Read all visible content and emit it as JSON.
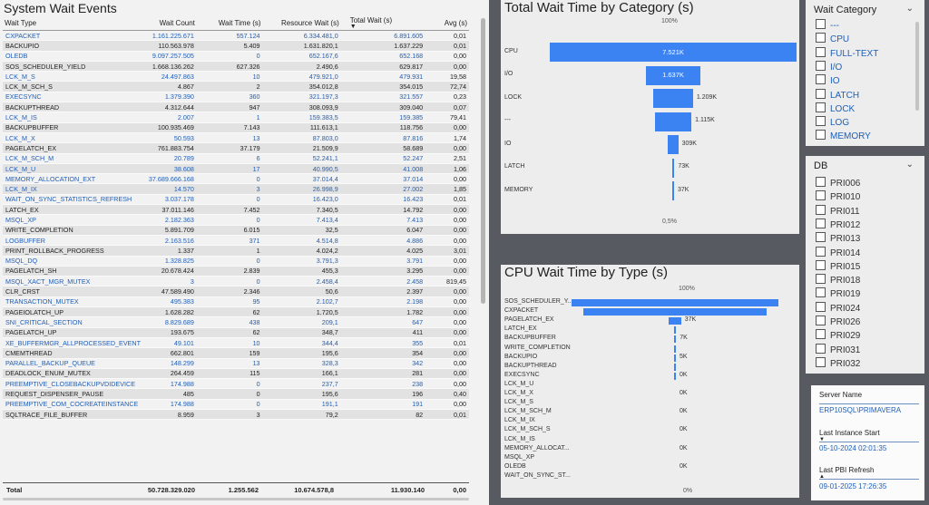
{
  "events": {
    "title": "System Wait Events",
    "columns": [
      "Wait Type",
      "Wait Count",
      "Wait Time (s)",
      "Resource Wait (s)",
      "Total Wait (s)",
      "Avg (s)"
    ],
    "rows": [
      [
        "CXPACKET",
        "1.161.225.671",
        "557.124",
        "6.334.481,0",
        "6.891.605",
        "0,01",
        true
      ],
      [
        "BACKUPIO",
        "110.563.978",
        "5.409",
        "1.631.820,1",
        "1.637.229",
        "0,01",
        false
      ],
      [
        "OLEDB",
        "9.097.257.505",
        "0",
        "652.167,6",
        "652.168",
        "0,00",
        true
      ],
      [
        "SOS_SCHEDULER_YIELD",
        "1.668.136.262",
        "627.326",
        "2.490,6",
        "629.817",
        "0,00",
        false
      ],
      [
        "LCK_M_S",
        "24.497.863",
        "10",
        "479.921,0",
        "479.931",
        "19,58",
        true
      ],
      [
        "LCK_M_SCH_S",
        "4.867",
        "2",
        "354.012,8",
        "354.015",
        "72,74",
        false
      ],
      [
        "EXECSYNC",
        "1.379.390",
        "360",
        "321.197,3",
        "321.557",
        "0,23",
        true
      ],
      [
        "BACKUPTHREAD",
        "4.312.644",
        "947",
        "308.093,9",
        "309.040",
        "0,07",
        false
      ],
      [
        "LCK_M_IS",
        "2.007",
        "1",
        "159.383,5",
        "159.385",
        "79,41",
        true
      ],
      [
        "BACKUPBUFFER",
        "100.935.469",
        "7.143",
        "111.613,1",
        "118.756",
        "0,00",
        false
      ],
      [
        "LCK_M_X",
        "50.593",
        "13",
        "87.803,0",
        "87.816",
        "1,74",
        true
      ],
      [
        "PAGELATCH_EX",
        "761.883.754",
        "37.179",
        "21.509,9",
        "58.689",
        "0,00",
        false
      ],
      [
        "LCK_M_SCH_M",
        "20.789",
        "6",
        "52.241,1",
        "52.247",
        "2,51",
        true
      ],
      [
        "LCK_M_U",
        "38.608",
        "17",
        "40.990,5",
        "41.008",
        "1,06",
        true
      ],
      [
        "MEMORY_ALLOCATION_EXT",
        "37.689.666.168",
        "0",
        "37.014,4",
        "37.014",
        "0,00",
        true
      ],
      [
        "LCK_M_IX",
        "14.570",
        "3",
        "26.998,9",
        "27.002",
        "1,85",
        true
      ],
      [
        "WAIT_ON_SYNC_STATISTICS_REFRESH",
        "3.037.178",
        "0",
        "16.423,0",
        "16.423",
        "0,01",
        true
      ],
      [
        "LATCH_EX",
        "37.011.146",
        "7.452",
        "7.340,5",
        "14.792",
        "0,00",
        false
      ],
      [
        "MSQL_XP",
        "2.182.363",
        "0",
        "7.413,4",
        "7.413",
        "0,00",
        true
      ],
      [
        "WRITE_COMPLETION",
        "5.891.709",
        "6.015",
        "32,5",
        "6.047",
        "0,00",
        false
      ],
      [
        "LOGBUFFER",
        "2.163.516",
        "371",
        "4.514,8",
        "4.886",
        "0,00",
        true
      ],
      [
        "PRINT_ROLLBACK_PROGRESS",
        "1.337",
        "1",
        "4.024,2",
        "4.025",
        "3,01",
        false
      ],
      [
        "MSQL_DQ",
        "1.328.825",
        "0",
        "3.791,3",
        "3.791",
        "0,00",
        true
      ],
      [
        "PAGELATCH_SH",
        "20.678.424",
        "2.839",
        "455,3",
        "3.295",
        "0,00",
        false
      ],
      [
        "MSQL_XACT_MGR_MUTEX",
        "3",
        "0",
        "2.458,4",
        "2.458",
        "819,45",
        true
      ],
      [
        "CLR_CRST",
        "47.589.490",
        "2.346",
        "50,6",
        "2.397",
        "0,00",
        false
      ],
      [
        "TRANSACTION_MUTEX",
        "495.383",
        "95",
        "2.102,7",
        "2.198",
        "0,00",
        true
      ],
      [
        "PAGEIOLATCH_UP",
        "1.628.282",
        "62",
        "1.720,5",
        "1.782",
        "0,00",
        false
      ],
      [
        "SNI_CRITICAL_SECTION",
        "8.829.689",
        "438",
        "209,1",
        "647",
        "0,00",
        true
      ],
      [
        "PAGELATCH_UP",
        "193.675",
        "62",
        "348,7",
        "411",
        "0,00",
        false
      ],
      [
        "XE_BUFFERMGR_ALLPROCESSED_EVENT",
        "49.101",
        "10",
        "344,4",
        "355",
        "0,01",
        true
      ],
      [
        "CMEMTHREAD",
        "662.801",
        "159",
        "195,6",
        "354",
        "0,00",
        false
      ],
      [
        "PARALLEL_BACKUP_QUEUE",
        "148.299",
        "13",
        "328,3",
        "342",
        "0,00",
        true
      ],
      [
        "DEADLOCK_ENUM_MUTEX",
        "264.459",
        "115",
        "166,1",
        "281",
        "0,00",
        false
      ],
      [
        "PREEMPTIVE_CLOSEBACKUPVDIDEVICE",
        "174.988",
        "0",
        "237,7",
        "238",
        "0,00",
        true
      ],
      [
        "REQUEST_DISPENSER_PAUSE",
        "485",
        "0",
        "195,6",
        "196",
        "0,40",
        false
      ],
      [
        "PREEMPTIVE_COM_COCREATEINSTANCE",
        "174.988",
        "0",
        "191,1",
        "191",
        "0,00",
        true
      ],
      [
        "SQLTRACE_FILE_BUFFER",
        "8.959",
        "3",
        "79,2",
        "82",
        "0,01",
        false
      ]
    ],
    "total": [
      "Total",
      "50.728.329.020",
      "1.255.562",
      "10.674.578,8",
      "11.930.140",
      "0,00"
    ]
  },
  "total_wait_chart": {
    "title": "Total Wait Time by Category (s)",
    "top_pct": "100%",
    "bottom_pct": "0,5%",
    "accent": "#3b83f3",
    "categories": [
      "CPU",
      "I/O",
      "LOCK",
      "---",
      "IO",
      "LATCH",
      "MEMORY"
    ],
    "values": [
      7521,
      1637,
      1209,
      1115,
      309,
      73,
      37
    ],
    "labels": [
      "7.521K",
      "1.637K",
      "1.209K",
      "1.115K",
      "309K",
      "73K",
      "37K"
    ]
  },
  "cpu_wait_chart": {
    "title": "CPU Wait Time by Type (s)",
    "top_pct": "100%",
    "bottom_pct": "0%",
    "accent": "#3b83f3",
    "categories": [
      "SOS_SCHEDULER_Y...",
      "CXPACKET",
      "PAGELATCH_EX",
      "LATCH_EX",
      "BACKUPBUFFER",
      "WRITE_COMPLETION",
      "BACKUPIO",
      "BACKUPTHREAD",
      "EXECSYNC",
      "LCK_M_U",
      "LCK_M_X",
      "LCK_M_S",
      "LCK_M_SCH_M",
      "LCK_M_IX",
      "LCK_M_SCH_S",
      "LCK_M_IS",
      "MEMORY_ALLOCAT...",
      "MSQL_XP",
      "OLEDB",
      "WAIT_ON_SYNC_ST..."
    ],
    "values": [
      627,
      557,
      37,
      7.5,
      7,
      6,
      5,
      1,
      0.4,
      0,
      0,
      0,
      0,
      0,
      0,
      0,
      0,
      0,
      0,
      0
    ],
    "labels": [
      "",
      "",
      "37K",
      "",
      "7K",
      "",
      "5K",
      "",
      "0K",
      "",
      "0K",
      "",
      "0K",
      "",
      "0K",
      "",
      "0K",
      "",
      "0K",
      ""
    ]
  },
  "wait_category_slicer": {
    "title": "Wait Category",
    "options": [
      "---",
      "CPU",
      "FULL-TEXT",
      "I/O",
      "IO",
      "LATCH",
      "LOCK",
      "LOG",
      "MEMORY"
    ]
  },
  "db_slicer": {
    "title": "DB",
    "options": [
      "PRI006",
      "PRI010",
      "PRI011",
      "PRI012",
      "PRI013",
      "PRI014",
      "PRI015",
      "PRI018",
      "PRI019",
      "PRI024",
      "PRI026",
      "PRI029",
      "PRI031",
      "PRI032"
    ]
  },
  "info": {
    "server_label": "Server Name",
    "server_value": "ERP10SQL\\PRIMAVERA",
    "instance_label": "Last Instance Start",
    "instance_value": "05-10-2024 02:01:35",
    "refresh_label": "Last PBI Refresh",
    "refresh_value": "09-01-2025 17:26:35"
  }
}
